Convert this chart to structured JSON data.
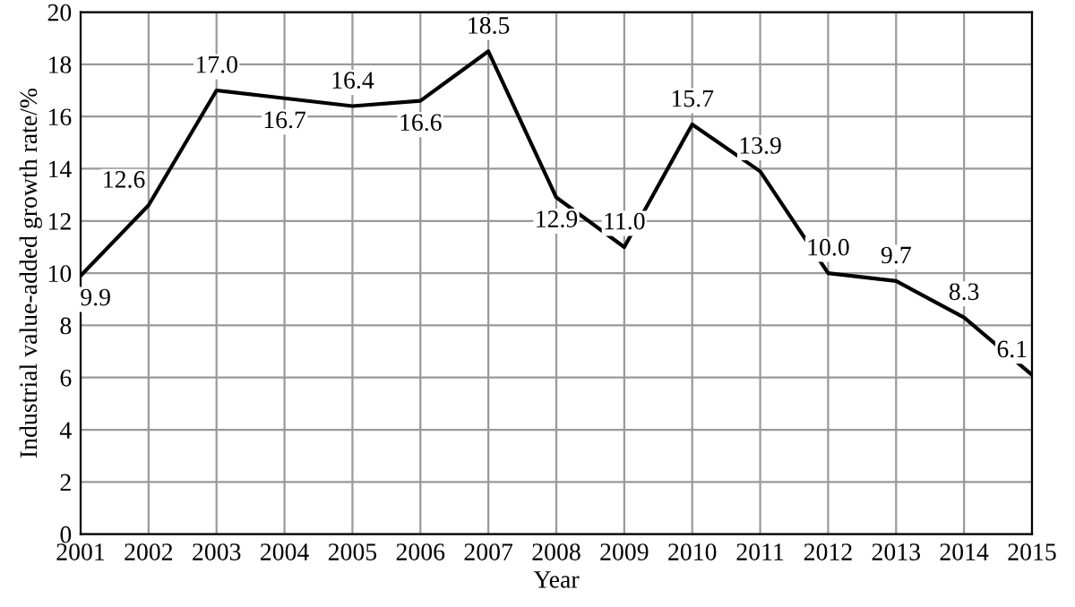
{
  "chart_data": {
    "type": "line",
    "xlabel": "Year",
    "ylabel": "Industrial value-added growth rate/%",
    "x": [
      2001,
      2002,
      2003,
      2004,
      2005,
      2006,
      2007,
      2008,
      2009,
      2010,
      2011,
      2012,
      2013,
      2014,
      2015
    ],
    "series": [
      {
        "color": "#000000",
        "values": [
          9.9,
          12.6,
          17.0,
          16.7,
          16.4,
          16.6,
          18.5,
          12.9,
          11.0,
          15.7,
          13.9,
          10.0,
          9.7,
          8.3,
          6.1
        ],
        "value_labels": [
          "9.9",
          "12.6",
          "17.0",
          "16.7",
          "16.4",
          "16.6",
          "18.5",
          "12.9",
          "11.0",
          "15.7",
          "13.9",
          "10.0",
          "9.7",
          "8.3",
          "6.1"
        ]
      }
    ],
    "xlim": [
      2001,
      2015
    ],
    "xticks": [
      2001,
      2002,
      2003,
      2004,
      2005,
      2006,
      2007,
      2008,
      2009,
      2010,
      2011,
      2012,
      2013,
      2014,
      2015
    ],
    "ylim": [
      0,
      20
    ],
    "yticks": [
      0,
      2,
      4,
      6,
      8,
      10,
      12,
      14,
      16,
      18,
      20
    ],
    "grid": true,
    "marker": "none",
    "line_style": "solid"
  }
}
